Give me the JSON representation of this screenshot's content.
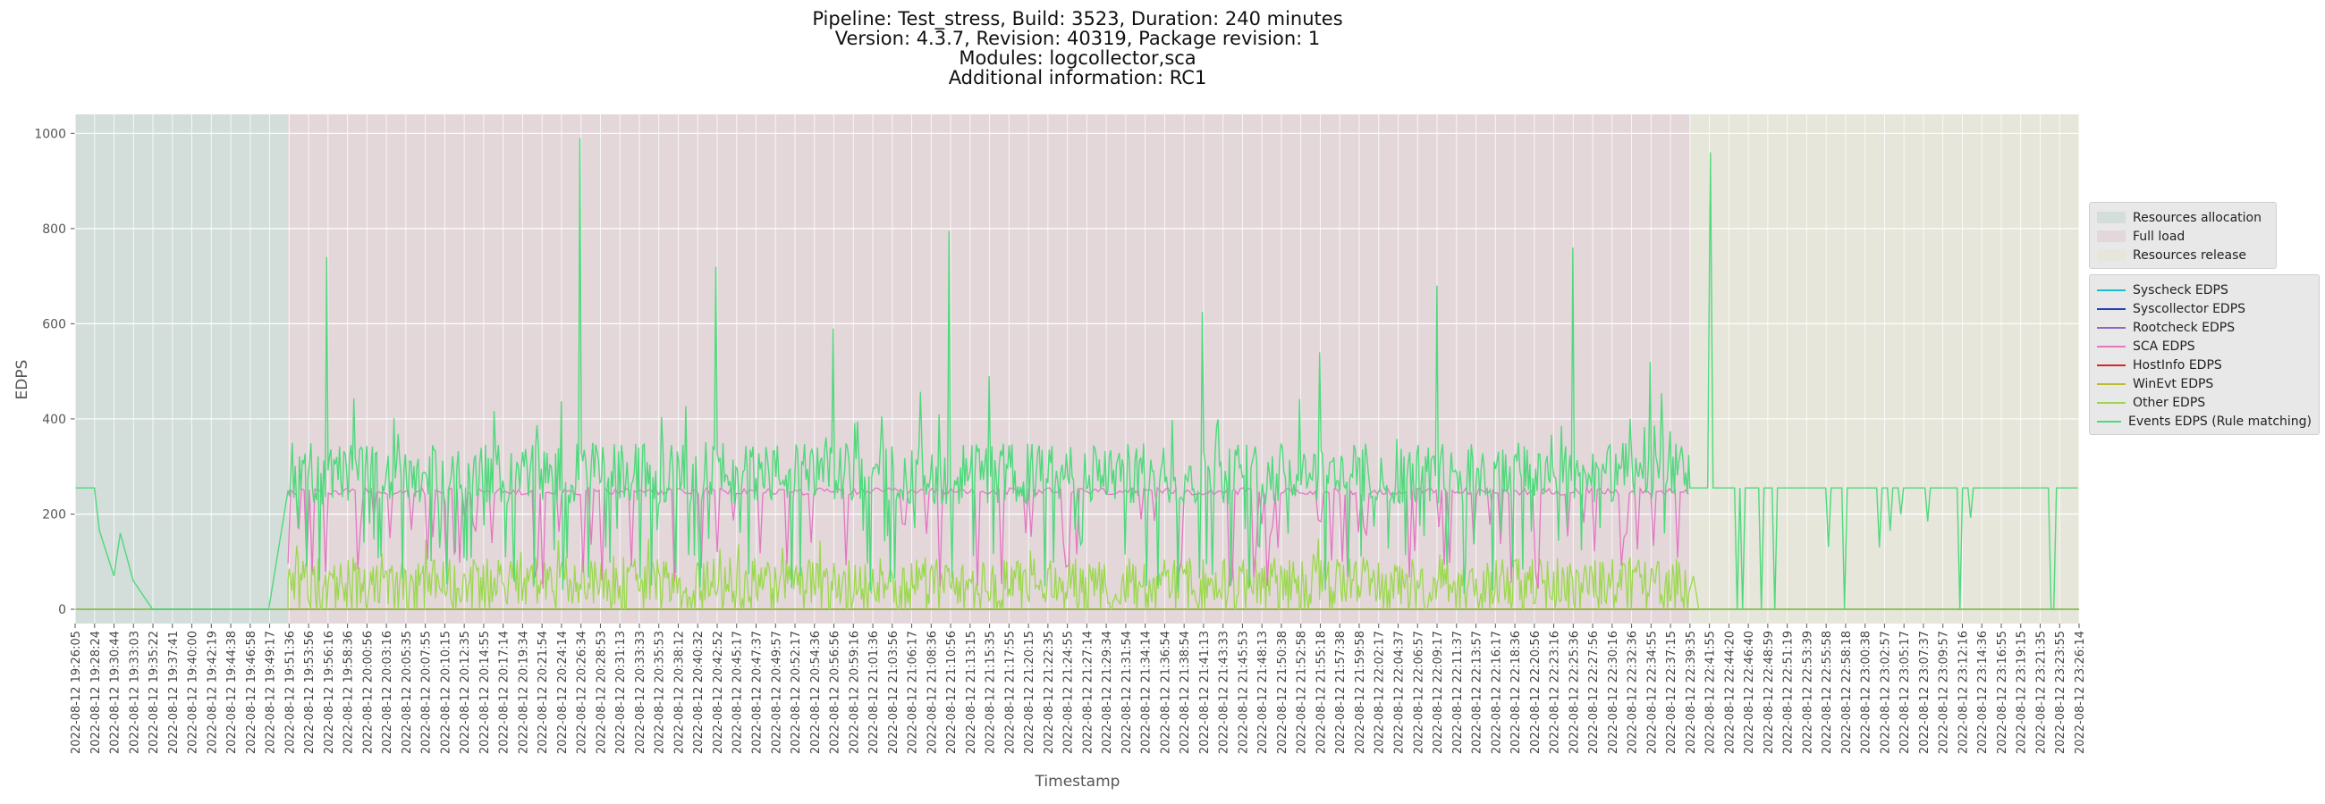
{
  "title_lines": [
    "Pipeline: Test_stress, Build: 3523, Duration: 240 minutes",
    "Version: 4.3.7, Revision: 40319, Package revision: 1",
    "Modules: logcollector,sca",
    "Additional information: RC1"
  ],
  "phases": [
    {
      "name": "Resources allocation",
      "color": "#d3ddda"
    },
    {
      "name": "Full load",
      "color": "#e3d7da"
    },
    {
      "name": "Resources release",
      "color": "#e6e6da"
    }
  ],
  "series_legend": [
    {
      "name": "Syscheck EDPS",
      "color": "#17becf"
    },
    {
      "name": "Syscollector EDPS",
      "color": "#1f3fbf"
    },
    {
      "name": "Rootcheck EDPS",
      "color": "#9467bd"
    },
    {
      "name": "SCA EDPS",
      "color": "#e377c2"
    },
    {
      "name": "HostInfo EDPS",
      "color": "#d62728"
    },
    {
      "name": "WinEvt EDPS",
      "color": "#bcbd22"
    },
    {
      "name": "Other EDPS",
      "color": "#9cd84e"
    },
    {
      "name": "Events EDPS (Rule matching)",
      "color": "#4fd97c"
    }
  ],
  "chart_data": {
    "type": "line",
    "xlabel": "Timestamp",
    "ylabel": "EDPS",
    "ylim": [
      -30,
      1040
    ],
    "yticks": [
      0,
      200,
      400,
      600,
      800,
      1000
    ],
    "grid": true,
    "legend_placement": "right",
    "x_range": [
      "2022-08-12 19:26:05",
      "2022-08-12 23:26:14"
    ],
    "phase_boundaries": [
      "2022-08-12 19:51:36",
      "2022-08-12 22:39:35"
    ],
    "xtick_labels": [
      "2022-08-12 19:26:05",
      "2022-08-12 19:28:24",
      "2022-08-12 19:30:44",
      "2022-08-12 19:33:03",
      "2022-08-12 19:35:22",
      "2022-08-12 19:37:41",
      "2022-08-12 19:40:00",
      "2022-08-12 19:42:19",
      "2022-08-12 19:44:38",
      "2022-08-12 19:46:58",
      "2022-08-12 19:49:17",
      "2022-08-12 19:51:36",
      "2022-08-12 19:53:56",
      "2022-08-12 19:56:16",
      "2022-08-12 19:58:36",
      "2022-08-12 20:00:56",
      "2022-08-12 20:03:16",
      "2022-08-12 20:05:35",
      "2022-08-12 20:07:55",
      "2022-08-12 20:10:15",
      "2022-08-12 20:12:35",
      "2022-08-12 20:14:55",
      "2022-08-12 20:17:14",
      "2022-08-12 20:19:34",
      "2022-08-12 20:21:54",
      "2022-08-12 20:24:14",
      "2022-08-12 20:26:34",
      "2022-08-12 20:28:53",
      "2022-08-12 20:31:13",
      "2022-08-12 20:33:33",
      "2022-08-12 20:35:53",
      "2022-08-12 20:38:12",
      "2022-08-12 20:40:32",
      "2022-08-12 20:42:52",
      "2022-08-12 20:45:17",
      "2022-08-12 20:47:37",
      "2022-08-12 20:49:57",
      "2022-08-12 20:52:17",
      "2022-08-12 20:54:36",
      "2022-08-12 20:56:56",
      "2022-08-12 20:59:16",
      "2022-08-12 21:01:36",
      "2022-08-12 21:03:56",
      "2022-08-12 21:06:17",
      "2022-08-12 21:08:36",
      "2022-08-12 21:10:56",
      "2022-08-12 21:13:15",
      "2022-08-12 21:15:35",
      "2022-08-12 21:17:55",
      "2022-08-12 21:20:15",
      "2022-08-12 21:22:35",
      "2022-08-12 21:24:55",
      "2022-08-12 21:27:14",
      "2022-08-12 21:29:34",
      "2022-08-12 21:31:54",
      "2022-08-12 21:34:14",
      "2022-08-12 21:36:54",
      "2022-08-12 21:38:54",
      "2022-08-12 21:41:13",
      "2022-08-12 21:43:33",
      "2022-08-12 21:45:53",
      "2022-08-12 21:48:13",
      "2022-08-12 21:50:38",
      "2022-08-12 21:52:58",
      "2022-08-12 21:55:18",
      "2022-08-12 21:57:38",
      "2022-08-12 21:59:58",
      "2022-08-12 22:02:17",
      "2022-08-12 22:04:37",
      "2022-08-12 22:06:57",
      "2022-08-12 22:09:17",
      "2022-08-12 22:11:37",
      "2022-08-12 22:13:57",
      "2022-08-12 22:16:17",
      "2022-08-12 22:18:36",
      "2022-08-12 22:20:56",
      "2022-08-12 22:23:16",
      "2022-08-12 22:25:36",
      "2022-08-12 22:27:56",
      "2022-08-12 22:30:16",
      "2022-08-12 22:32:36",
      "2022-08-12 22:34:55",
      "2022-08-12 22:37:15",
      "2022-08-12 22:39:35",
      "2022-08-12 22:41:55",
      "2022-08-12 22:44:20",
      "2022-08-12 22:46:40",
      "2022-08-12 22:48:59",
      "2022-08-12 22:51:19",
      "2022-08-12 22:53:39",
      "2022-08-12 22:55:58",
      "2022-08-12 22:58:18",
      "2022-08-12 23:00:38",
      "2022-08-12 23:02:57",
      "2022-08-12 23:05:17",
      "2022-08-12 23:07:37",
      "2022-08-12 23:09:57",
      "2022-08-12 23:12:16",
      "2022-08-12 23:14:36",
      "2022-08-12 23:16:55",
      "2022-08-12 23:19:15",
      "2022-08-12 23:21:35",
      "2022-08-12 23:23:55",
      "2022-08-12 23:26:14"
    ],
    "series": [
      {
        "name": "Events EDPS (Rule matching)",
        "x": [
          "2022-08-12 19:26:05",
          "2022-08-12 19:28:24",
          "2022-08-12 19:29:00",
          "2022-08-12 19:30:44",
          "2022-08-12 19:31:30",
          "2022-08-12 19:33:03",
          "2022-08-12 19:35:22",
          "2022-08-12 19:37:41",
          "2022-08-12 19:49:17",
          "2022-08-12 19:51:36",
          "2022-08-12 19:56:16",
          "2022-08-12 20:14:55",
          "2022-08-12 20:26:34",
          "2022-08-12 20:42:52",
          "2022-08-12 20:56:56",
          "2022-08-12 21:10:56",
          "2022-08-12 21:15:35",
          "2022-08-12 21:41:13",
          "2022-08-12 21:55:18",
          "2022-08-12 22:09:17",
          "2022-08-12 22:25:36",
          "2022-08-12 22:34:55",
          "2022-08-12 22:39:35",
          "2022-08-12 22:41:55",
          "2022-08-12 22:44:20",
          "2022-08-12 22:51:19",
          "2022-08-12 22:58:18",
          "2022-08-12 23:05:17",
          "2022-08-12 23:12:16",
          "2022-08-12 23:19:15",
          "2022-08-12 23:26:14"
        ],
        "values": [
          255,
          255,
          165,
          70,
          160,
          60,
          0,
          0,
          0,
          250,
          740,
          270,
          990,
          720,
          590,
          795,
          490,
          625,
          540,
          680,
          760,
          520,
          255,
          960,
          255,
          250,
          200,
          255,
          255,
          200,
          255
        ]
      },
      {
        "name": "SCA EDPS",
        "x": [
          "2022-08-12 19:51:36",
          "2022-08-12 20:26:34",
          "2022-08-12 21:10:56",
          "2022-08-12 21:55:18",
          "2022-08-12 22:39:35"
        ],
        "values": [
          240,
          250,
          240,
          250,
          230
        ]
      },
      {
        "name": "Other EDPS",
        "x": [
          "2022-08-12 19:26:05",
          "2022-08-12 19:51:36",
          "2022-08-12 20:26:34",
          "2022-08-12 21:10:56",
          "2022-08-12 21:55:18",
          "2022-08-12 22:39:35",
          "2022-08-12 23:26:14"
        ],
        "values": [
          0,
          60,
          55,
          60,
          55,
          0,
          0
        ]
      }
    ]
  }
}
